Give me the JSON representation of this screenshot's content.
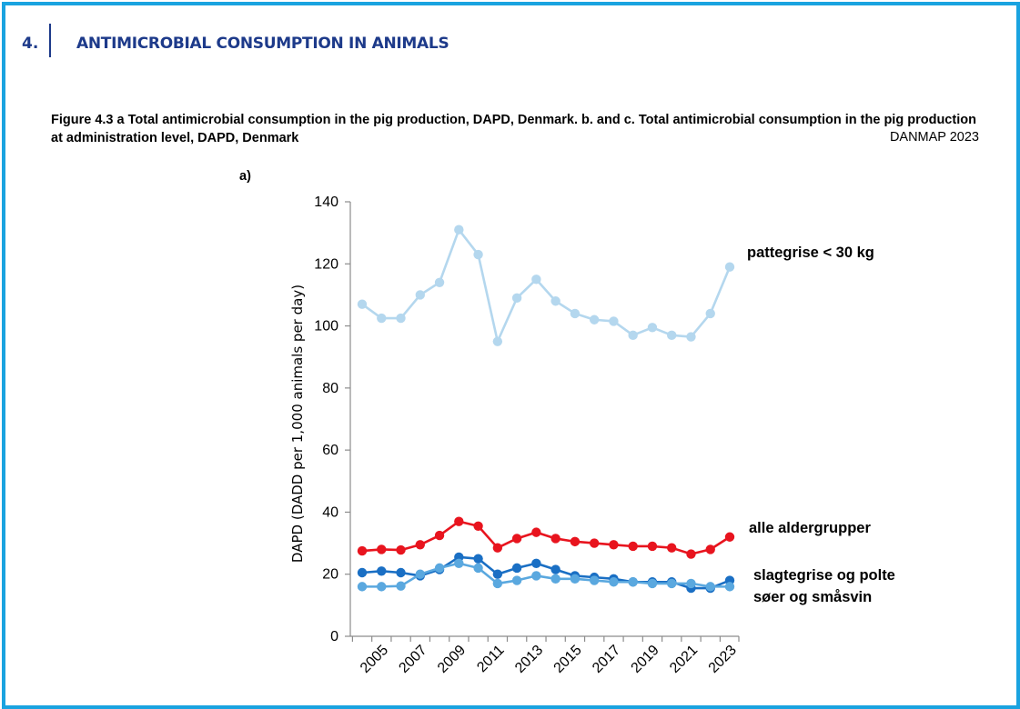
{
  "header": {
    "section_number": "4.",
    "section_title": "ANTIMICROBIAL CONSUMPTION IN ANIMALS"
  },
  "figure": {
    "caption": "Figure 4.3 a  Total antimicrobial consumption in the pig production, DAPD, Denmark. b. and c. Total antimicrobial consumption in the pig production at administration level, DAPD, Denmark",
    "source": "DANMAP 2023",
    "panel_label": "a)"
  },
  "colors": {
    "frame": "#1aa3e0",
    "header_text": "#1d3a8a"
  },
  "chart_data": {
    "type": "line",
    "title": "",
    "xlabel": "",
    "ylabel": "DAPD (DADD per 1,000 animals per day)",
    "ylim": [
      0,
      140
    ],
    "yticks": [
      0,
      20,
      40,
      60,
      80,
      100,
      120,
      140
    ],
    "grid": false,
    "x": [
      2004,
      2005,
      2006,
      2007,
      2008,
      2009,
      2010,
      2011,
      2012,
      2013,
      2014,
      2015,
      2016,
      2017,
      2018,
      2019,
      2020,
      2021,
      2022,
      2023
    ],
    "xticks": [
      "2005",
      "2007",
      "2009",
      "2011",
      "2013",
      "2015",
      "2017",
      "2019",
      "2021",
      "2023"
    ],
    "series": [
      {
        "name": "pattegrise < 30 kg",
        "color": "#b4d7ee",
        "values": [
          107,
          102.5,
          102.5,
          110,
          114,
          131,
          123,
          95,
          109,
          115,
          108,
          104,
          102,
          101.5,
          97,
          99.5,
          97,
          96.5,
          104,
          119
        ]
      },
      {
        "name": "alle aldergrupper",
        "color": "#e8141e",
        "values": [
          27.5,
          28,
          27.8,
          29.5,
          32.5,
          37,
          35.5,
          28.5,
          31.5,
          33.5,
          31.5,
          30.5,
          30,
          29.5,
          29,
          29,
          28.5,
          26.5,
          28,
          32
        ]
      },
      {
        "name": "slagtegrise og polte",
        "color": "#1a6fc4",
        "values": [
          20.5,
          21,
          20.5,
          19.5,
          21.5,
          25.5,
          25,
          20,
          22,
          23.5,
          21.5,
          19.5,
          19,
          18.5,
          17.5,
          17.5,
          17.5,
          15.5,
          15.5,
          18
        ]
      },
      {
        "name": "søer og småsvin",
        "color": "#5aa8df",
        "values": [
          16,
          16,
          16.2,
          20,
          22,
          23.5,
          22,
          17,
          18,
          19.5,
          18.5,
          18.5,
          18,
          17.5,
          17.5,
          17,
          17,
          17,
          16,
          16
        ]
      }
    ]
  }
}
